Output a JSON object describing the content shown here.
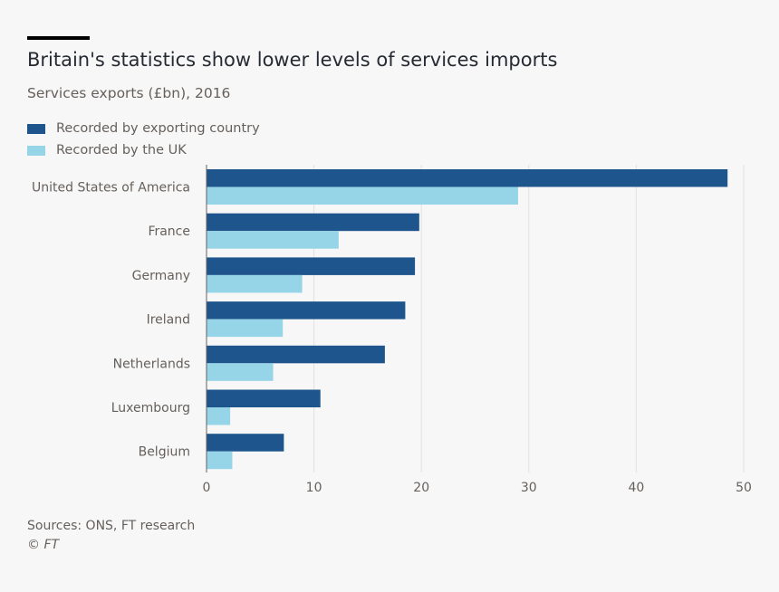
{
  "header": {
    "title": "Britain's statistics show lower levels of services imports",
    "subtitle": "Services exports (£bn), 2016"
  },
  "footer": {
    "source": "Sources: ONS, FT research",
    "copyright": "© FT"
  },
  "colors": {
    "background": "#f7f7f7",
    "series_exporting": "#1e558c",
    "series_uk": "#96d4e8",
    "text": "#66605c",
    "gridline": "#e3e1de"
  },
  "chart_data": {
    "type": "bar",
    "orientation": "horizontal",
    "categories": [
      "United States of America",
      "France",
      "Germany",
      "Ireland",
      "Netherlands",
      "Luxembourg",
      "Belgium"
    ],
    "series": [
      {
        "name": "Recorded by exporting country",
        "values": [
          48.5,
          19.8,
          19.4,
          18.5,
          16.6,
          10.6,
          7.2
        ]
      },
      {
        "name": "Recorded by the UK",
        "values": [
          29.0,
          12.3,
          8.9,
          7.1,
          6.2,
          2.2,
          2.4
        ]
      }
    ],
    "title": "Britain's statistics show lower levels of services imports",
    "subtitle": "Services exports (£bn), 2016",
    "xlim": [
      0,
      50
    ],
    "xticks": [
      0,
      10,
      20,
      30,
      40,
      50
    ],
    "grid": true,
    "legend_position": "top-left"
  }
}
